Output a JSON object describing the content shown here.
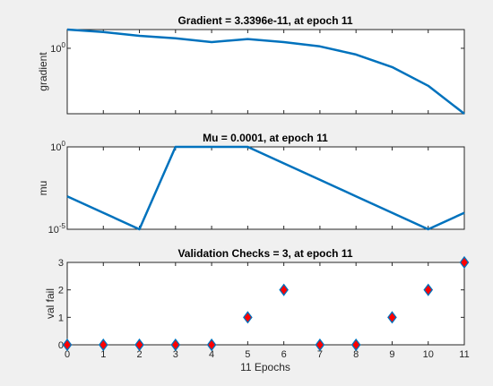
{
  "chart_data": [
    {
      "type": "line",
      "title": "Gradient = 3.3396e-11, at epoch 11",
      "xlabel": "",
      "ylabel": "gradient",
      "yscale": "log",
      "ytick_label": "10",
      "ytick_exp": "0",
      "xlim": [
        0,
        11
      ],
      "grid": false,
      "color": "#0072bd",
      "x": [
        0,
        1,
        2,
        3,
        4,
        5,
        6,
        7,
        8,
        9,
        10,
        11
      ],
      "y": [
        1000.0,
        400.0,
        100.0,
        40.0,
        10.0,
        30.0,
        10.0,
        2,
        0.1,
        0.001,
        1e-06,
        3.3396e-11
      ]
    },
    {
      "type": "line",
      "title": "Mu = 0.0001, at epoch 11",
      "xlabel": "",
      "ylabel": "mu",
      "yscale": "log",
      "yticks": [
        {
          "base": "10",
          "exp": "0",
          "value": 1
        },
        {
          "base": "10",
          "exp": "-5",
          "value": 1e-05
        }
      ],
      "ylim": [
        1e-05,
        1
      ],
      "xlim": [
        0,
        11
      ],
      "grid": false,
      "color": "#0072bd",
      "x": [
        0,
        1,
        2,
        3,
        4,
        5,
        6,
        7,
        8,
        9,
        10,
        11
      ],
      "y": [
        0.001,
        0.0001,
        1e-05,
        1,
        1,
        1,
        0.1,
        0.01,
        0.001,
        0.0001,
        1e-05,
        0.0001
      ]
    },
    {
      "type": "scatter",
      "title": "Validation Checks = 3, at epoch 11",
      "xlabel": "11 Epochs",
      "ylabel": "val fail",
      "xlim": [
        0,
        11
      ],
      "ylim": [
        0,
        3
      ],
      "xticks": [
        "0",
        "1",
        "2",
        "3",
        "4",
        "5",
        "6",
        "7",
        "8",
        "9",
        "10",
        "11"
      ],
      "yticks": [
        "0",
        "1",
        "2",
        "3"
      ],
      "grid": false,
      "marker": "diamond",
      "marker_fill": "#ff0000",
      "marker_edge": "#0072bd",
      "x": [
        0,
        1,
        2,
        3,
        4,
        5,
        6,
        7,
        8,
        9,
        10,
        11
      ],
      "y": [
        0,
        0,
        0,
        0,
        0,
        1,
        2,
        0,
        0,
        1,
        2,
        3
      ]
    }
  ]
}
